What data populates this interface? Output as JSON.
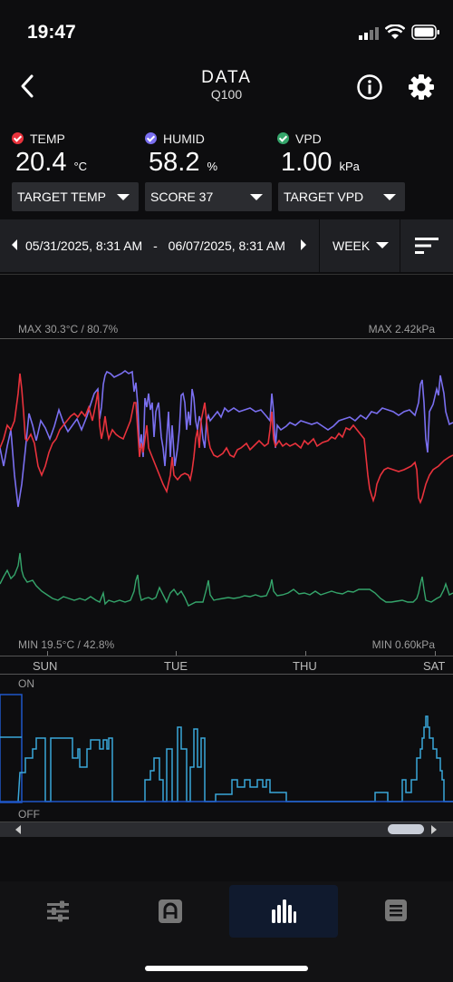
{
  "status": {
    "time": "19:47"
  },
  "header": {
    "title": "DATA",
    "subtitle": "Q100"
  },
  "readings": [
    {
      "label": "TEMP",
      "value": "20.4",
      "unit": "°C",
      "color": "#e8323c"
    },
    {
      "label": "HUMID",
      "value": "58.2",
      "unit": "%",
      "color": "#7a6ff0"
    },
    {
      "label": "VPD",
      "value": "1.00",
      "unit": "kPa",
      "color": "#35a56b"
    }
  ],
  "dropdowns": [
    "TARGET TEMP",
    "SCORE 37",
    "TARGET VPD"
  ],
  "date_range": {
    "start": "05/31/2025, 8:31 AM",
    "separator": "-",
    "end": "06/07/2025, 8:31 AM"
  },
  "range_select": "WEEK",
  "chart": {
    "max_left": "MAX 30.3°C / 80.7%",
    "max_right": "MAX 2.42kPa",
    "min_left": "MIN 19.5°C / 42.8%",
    "min_right": "MIN 0.60kPa",
    "days": [
      "SUN",
      "TUE",
      "THU",
      "SAT"
    ],
    "on_label": "ON",
    "off_label": "OFF",
    "colors": {
      "temp": "#e8323c",
      "humid": "#7a6ff0",
      "vpd": "#35a56b",
      "device": "#3aa7d9"
    }
  },
  "nav": [
    "sliders-icon",
    "controller-icon",
    "chart-bars-icon",
    "list-icon"
  ]
}
